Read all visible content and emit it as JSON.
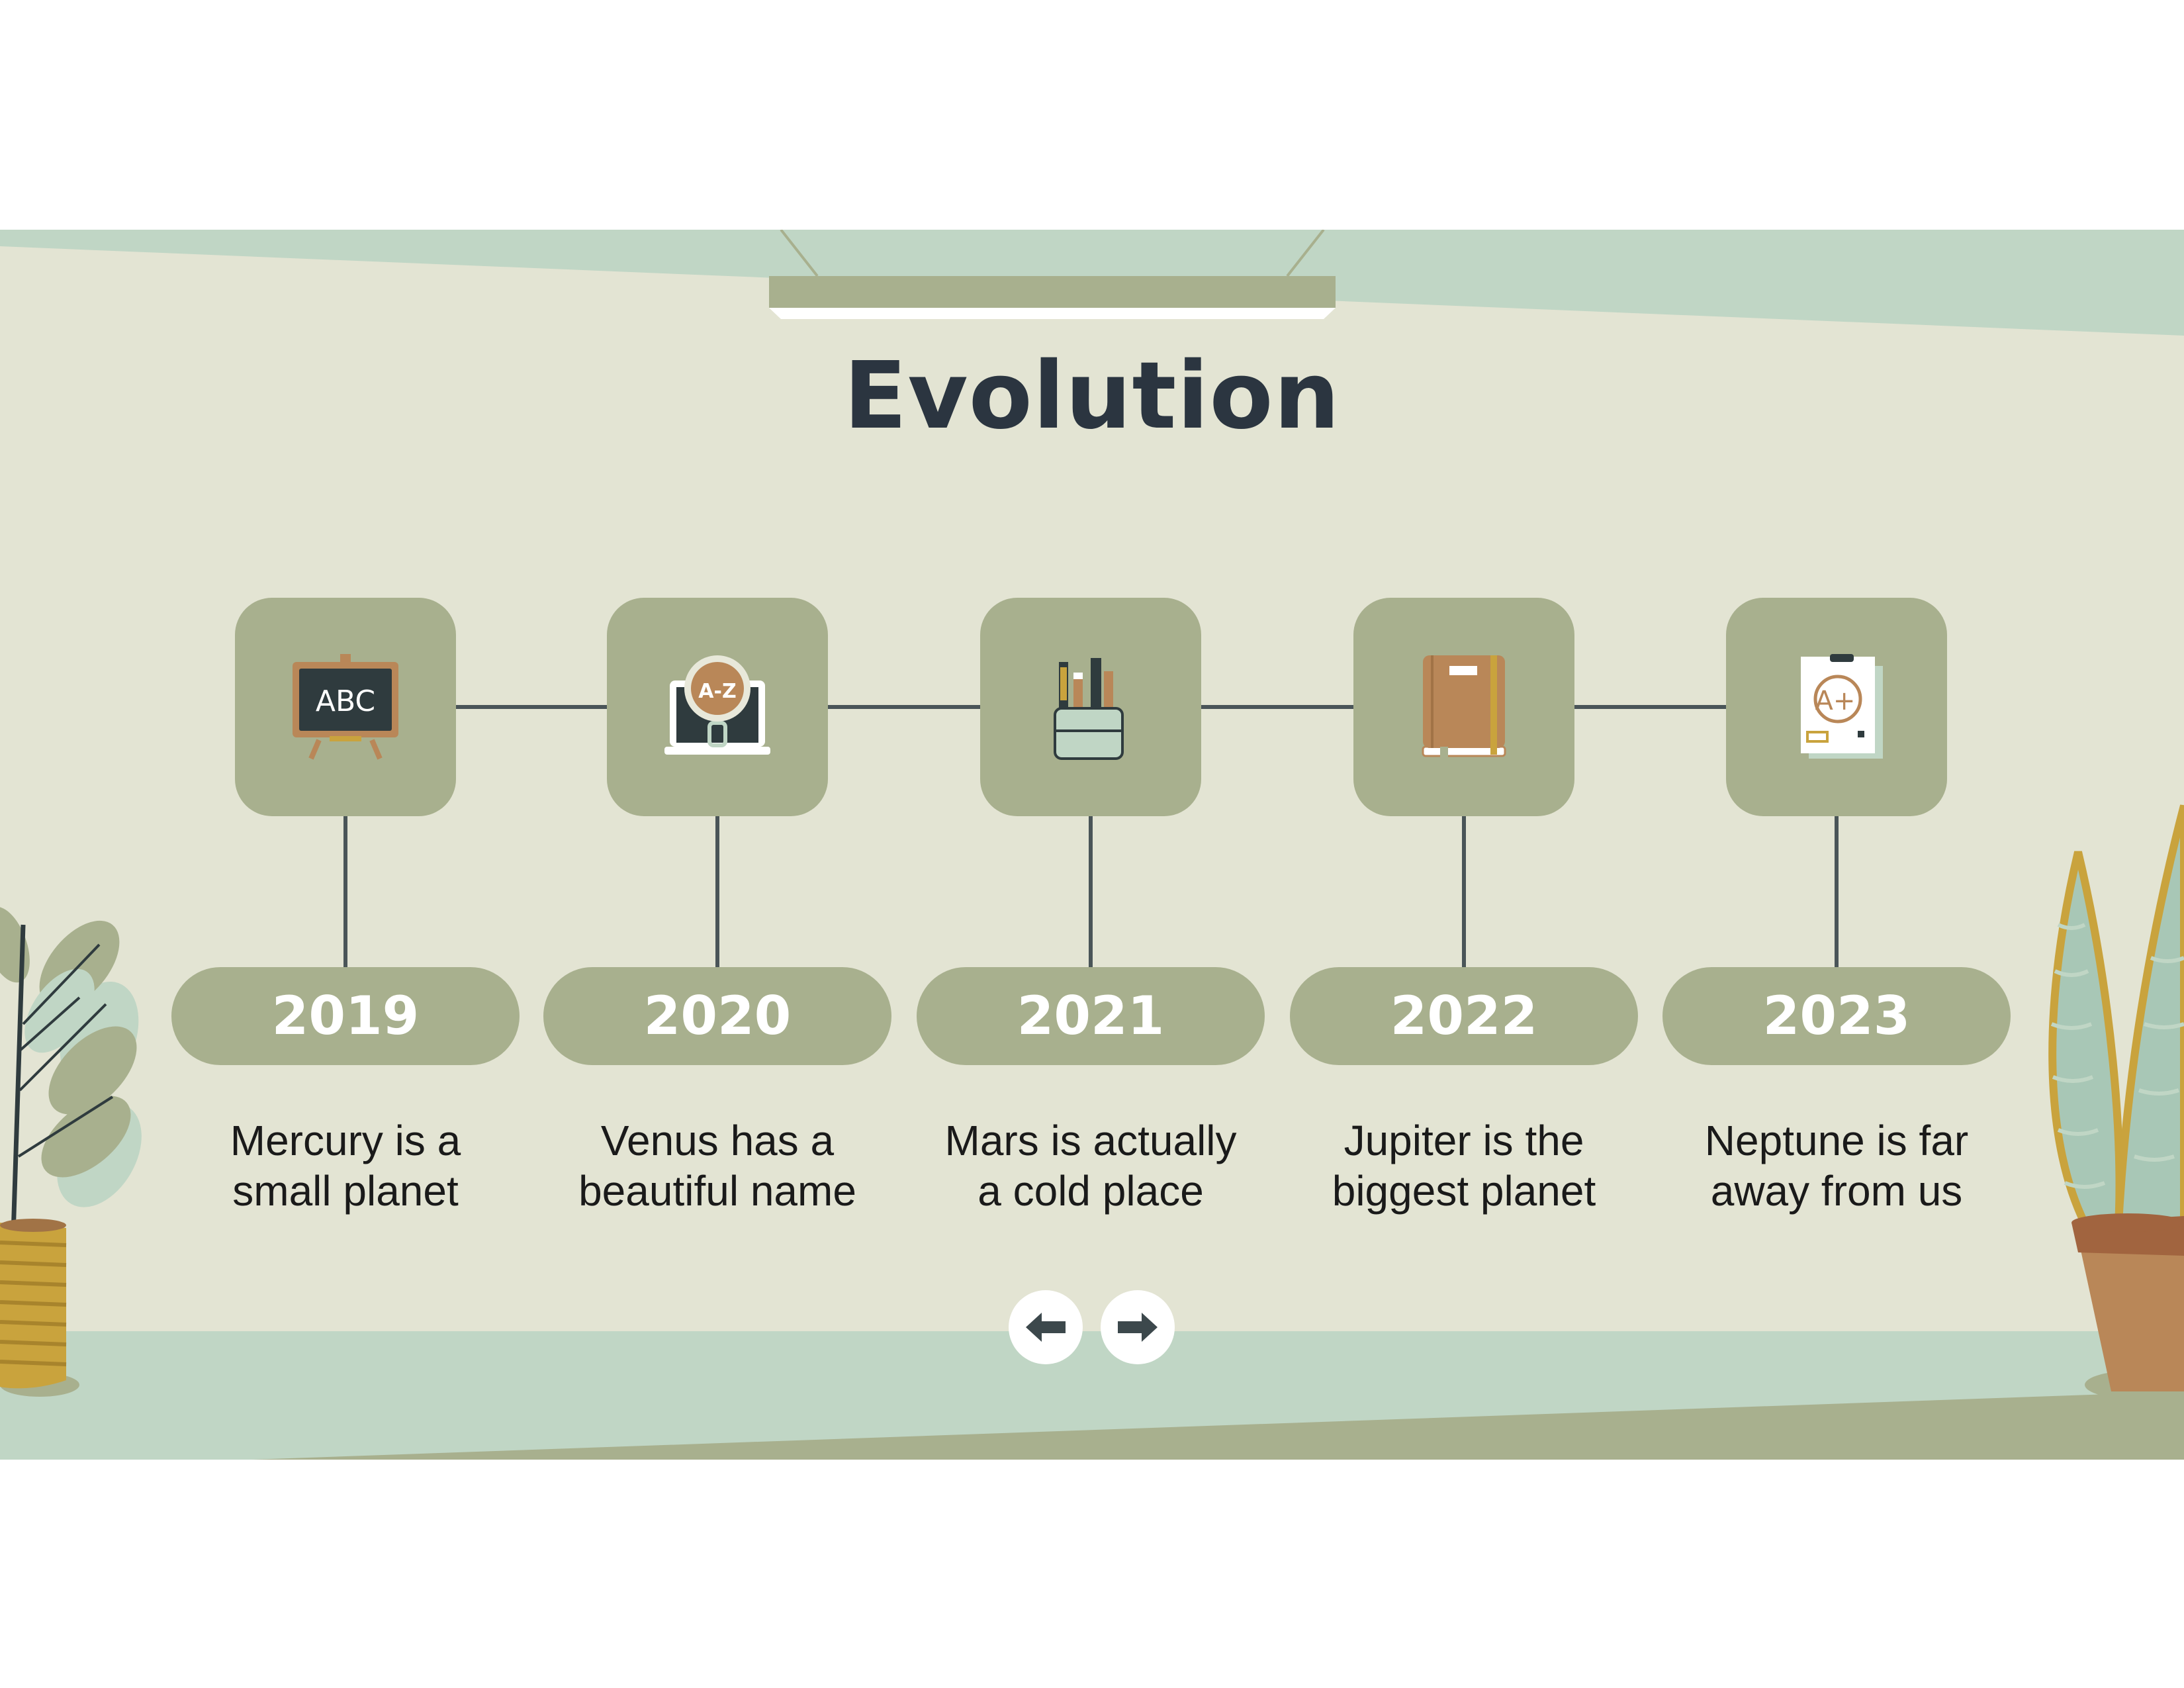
{
  "slide": {
    "title": "Evolution",
    "milestones": [
      {
        "year": "2019",
        "text_line1": "Mercury is a",
        "text_line2": "small planet",
        "icon": "chalkboard-abc-icon",
        "icon_text": "ABC"
      },
      {
        "year": "2020",
        "text_line1": "Venus has a",
        "text_line2": "beautiful name",
        "icon": "laptop-magnifier-icon",
        "icon_text": "A-Z"
      },
      {
        "year": "2021",
        "text_line1": "Mars is actually",
        "text_line2": "a cold place",
        "icon": "pencil-cup-icon"
      },
      {
        "year": "2022",
        "text_line1": "Jupiter is the",
        "text_line2": "biggest planet",
        "icon": "notebook-icon"
      },
      {
        "year": "2023",
        "text_line1": "Neptune is far",
        "text_line2": "away from us",
        "icon": "graded-paper-icon",
        "icon_text": "A+"
      }
    ],
    "navigation": {
      "prev": "arrow-left-icon",
      "next": "arrow-right-icon"
    }
  },
  "colors": {
    "background": "#e3e4d3",
    "mint": "#c0d6c5",
    "sage": "#a8b08e",
    "dark": "#2b3540",
    "connector": "#4a5558",
    "brown": "#b98758",
    "mustard": "#c9a33d"
  }
}
